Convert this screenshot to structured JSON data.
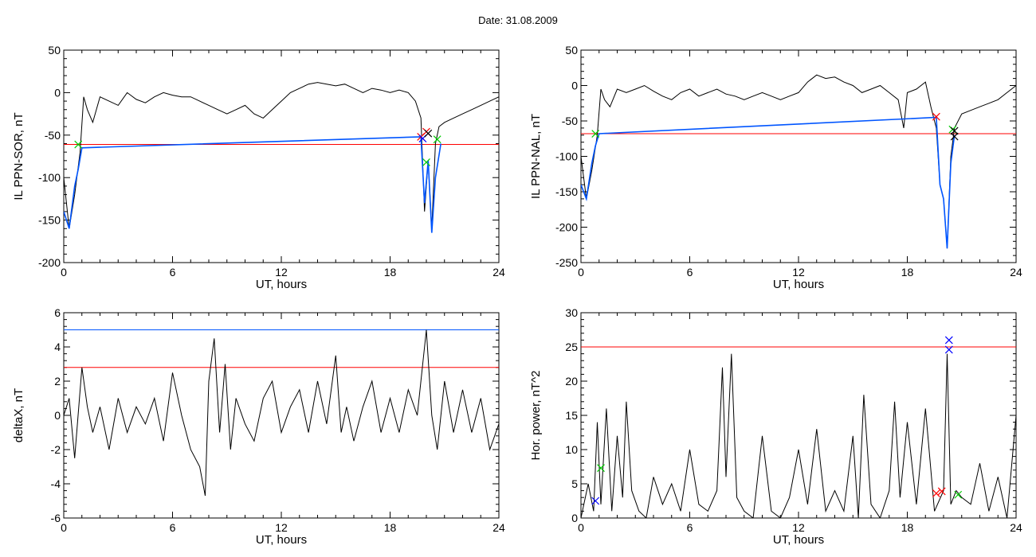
{
  "header": {
    "date_label": "Date:  31.08.2009"
  },
  "chart_data": [
    {
      "type": "line",
      "ylabel": "IL PPN-SOR, nT",
      "xlabel": "UT, hours",
      "xlim": [
        0,
        24
      ],
      "ylim": [
        -200,
        50
      ],
      "xticks": [
        "0",
        "6",
        "12",
        "18",
        "24"
      ],
      "yticks": [
        "50",
        "0",
        "-50",
        "-100",
        "-150",
        "-200"
      ],
      "hlines": [
        {
          "y": -61,
          "color": "#ff0000"
        }
      ],
      "series": [
        {
          "color": "#000000",
          "x": [
            0,
            0.3,
            0.6,
            0.9,
            1.1,
            1.3,
            1.6,
            2.0,
            2.5,
            3.0,
            3.5,
            4.0,
            4.5,
            5.0,
            5.5,
            6.0,
            6.5,
            7.0,
            7.5,
            8.0,
            8.5,
            9.0,
            9.5,
            10.0,
            10.5,
            11.0,
            11.5,
            12.0,
            12.5,
            13.0,
            13.5,
            14.0,
            14.5,
            15.0,
            15.5,
            16.0,
            16.5,
            17.0,
            17.5,
            18.0,
            18.5,
            19.0,
            19.4,
            19.7,
            19.9,
            20.1,
            20.3,
            20.5,
            20.7,
            21.0,
            21.5,
            22.0,
            22.5,
            23.0,
            23.5,
            24.0
          ],
          "y": [
            -100,
            -160,
            -120,
            -70,
            -5,
            -20,
            -35,
            -5,
            -10,
            -15,
            0,
            -8,
            -12,
            -5,
            0,
            -3,
            -5,
            -5,
            -10,
            -15,
            -20,
            -25,
            -20,
            -15,
            -25,
            -30,
            -20,
            -10,
            0,
            5,
            10,
            12,
            10,
            8,
            10,
            5,
            0,
            5,
            3,
            0,
            3,
            0,
            -10,
            -30,
            -140,
            -80,
            -160,
            -60,
            -40,
            -35,
            -30,
            -25,
            -20,
            -15,
            -10,
            -5
          ]
        },
        {
          "color": "#0055ff",
          "x": [
            0,
            0.3,
            0.6,
            0.8,
            1.0,
            19.7,
            19.9,
            20.1,
            20.3,
            20.5,
            20.8
          ],
          "y": [
            -140,
            -160,
            -110,
            -90,
            -65,
            -52,
            -130,
            -80,
            -165,
            -100,
            -60
          ]
        }
      ],
      "markers": [
        {
          "x": 0.8,
          "y": -61,
          "color": "#00cc00"
        },
        {
          "x": 19.7,
          "y": -52,
          "color": "#ff0000"
        },
        {
          "x": 19.8,
          "y": -54,
          "color": "#0000ff"
        },
        {
          "x": 20.0,
          "y": -46,
          "color": "#ff0000"
        },
        {
          "x": 20.1,
          "y": -48,
          "color": "#000000"
        },
        {
          "x": 20.0,
          "y": -82,
          "color": "#00cc00"
        },
        {
          "x": 20.6,
          "y": -55,
          "color": "#00cc00"
        }
      ]
    },
    {
      "type": "line",
      "ylabel": "IL PPN-NAL, nT",
      "xlabel": "UT, hours",
      "xlim": [
        0,
        24
      ],
      "ylim": [
        -250,
        50
      ],
      "xticks": [
        "0",
        "6",
        "12",
        "18",
        "24"
      ],
      "yticks": [
        "50",
        "0",
        "-50",
        "-100",
        "-150",
        "-200",
        "-250"
      ],
      "hlines": [
        {
          "y": -68,
          "color": "#ff0000"
        }
      ],
      "series": [
        {
          "color": "#000000",
          "x": [
            0,
            0.3,
            0.6,
            0.9,
            1.1,
            1.3,
            1.6,
            2.0,
            2.5,
            3.0,
            3.5,
            4.0,
            4.5,
            5.0,
            5.5,
            6.0,
            6.5,
            7.0,
            7.5,
            8.0,
            8.5,
            9.0,
            9.5,
            10.0,
            10.5,
            11.0,
            11.5,
            12.0,
            12.5,
            13.0,
            13.5,
            14.0,
            14.5,
            15.0,
            15.5,
            16.0,
            16.5,
            17.0,
            17.5,
            17.8,
            18.0,
            18.5,
            19.0,
            19.3,
            19.6,
            19.8,
            20.0,
            20.2,
            20.4,
            20.6,
            21.0,
            21.5,
            22.0,
            22.5,
            23.0,
            23.5,
            24.0
          ],
          "y": [
            -100,
            -160,
            -120,
            -70,
            -5,
            -20,
            -30,
            -5,
            -10,
            -5,
            0,
            -8,
            -15,
            -20,
            -10,
            -5,
            -15,
            -10,
            -5,
            -12,
            -15,
            -20,
            -15,
            -10,
            -15,
            -20,
            -15,
            -10,
            5,
            15,
            10,
            12,
            5,
            0,
            -10,
            -5,
            0,
            -10,
            -20,
            -60,
            -10,
            -5,
            5,
            -30,
            -60,
            -140,
            -160,
            -230,
            -100,
            -60,
            -40,
            -35,
            -30,
            -25,
            -20,
            -10,
            0
          ]
        },
        {
          "color": "#0055ff",
          "x": [
            0,
            0.3,
            0.6,
            0.8,
            1.0,
            19.6,
            19.8,
            20.0,
            20.2,
            20.4,
            20.6
          ],
          "y": [
            -140,
            -160,
            -110,
            -85,
            -68,
            -45,
            -140,
            -160,
            -230,
            -110,
            -70
          ]
        }
      ],
      "markers": [
        {
          "x": 0.8,
          "y": -68,
          "color": "#00cc00"
        },
        {
          "x": 19.6,
          "y": -44,
          "color": "#ff0000"
        },
        {
          "x": 20.5,
          "y": -62,
          "color": "#00cc00"
        },
        {
          "x": 20.6,
          "y": -64,
          "color": "#000000"
        },
        {
          "x": 20.6,
          "y": -72,
          "color": "#000000"
        }
      ]
    },
    {
      "type": "line",
      "ylabel": "deltaX, nT",
      "xlabel": "UT, hours",
      "xlim": [
        0,
        24
      ],
      "ylim": [
        -6,
        6
      ],
      "xticks": [
        "0",
        "6",
        "12",
        "18",
        "24"
      ],
      "yticks": [
        "6",
        "4",
        "2",
        "0",
        "-2",
        "-4",
        "-6"
      ],
      "hlines": [
        {
          "y": 5.0,
          "color": "#0055ff"
        },
        {
          "y": 2.8,
          "color": "#ff0000"
        }
      ],
      "series": [
        {
          "color": "#000000",
          "x": [
            0,
            0.3,
            0.6,
            1.0,
            1.3,
            1.6,
            2.0,
            2.5,
            3.0,
            3.5,
            4.0,
            4.5,
            5.0,
            5.5,
            6.0,
            6.5,
            7.0,
            7.5,
            7.8,
            8.0,
            8.3,
            8.6,
            8.9,
            9.2,
            9.5,
            10.0,
            10.5,
            11.0,
            11.5,
            12.0,
            12.5,
            13.0,
            13.5,
            14.0,
            14.5,
            15.0,
            15.3,
            15.6,
            16.0,
            16.5,
            17.0,
            17.5,
            18.0,
            18.5,
            19.0,
            19.5,
            20.0,
            20.3,
            20.6,
            21.0,
            21.5,
            22.0,
            22.5,
            23.0,
            23.5,
            24.0
          ],
          "y": [
            0,
            1.0,
            -2.5,
            2.8,
            0.5,
            -1.0,
            0.5,
            -2.0,
            1.0,
            -1.0,
            0.5,
            -0.5,
            1.0,
            -1.5,
            2.5,
            0.0,
            -2.0,
            -3.0,
            -4.7,
            2.0,
            4.5,
            -1.0,
            3.0,
            -2.0,
            1.0,
            -0.5,
            -1.5,
            1.0,
            2.0,
            -1.0,
            0.5,
            1.5,
            -1.0,
            2.0,
            -0.5,
            3.5,
            -1.0,
            0.5,
            -1.5,
            0.5,
            2.0,
            -1.0,
            1.0,
            -1.0,
            1.5,
            0.0,
            5.0,
            0.0,
            -2.0,
            2.0,
            -1.0,
            1.5,
            -1.0,
            1.0,
            -2.0,
            -0.5
          ]
        }
      ],
      "markers": []
    },
    {
      "type": "line",
      "ylabel": "Hor. power, nT^2",
      "xlabel": "UT, hours",
      "xlim": [
        0,
        24
      ],
      "ylim": [
        0,
        30
      ],
      "xticks": [
        "0",
        "6",
        "12",
        "18",
        "24"
      ],
      "yticks": [
        "30",
        "25",
        "20",
        "15",
        "10",
        "5",
        "0"
      ],
      "hlines": [
        {
          "y": 25.0,
          "color": "#ff0000"
        }
      ],
      "series": [
        {
          "color": "#000000",
          "x": [
            0,
            0.4,
            0.7,
            0.9,
            1.1,
            1.4,
            1.7,
            2.0,
            2.3,
            2.5,
            2.8,
            3.2,
            3.6,
            4.0,
            4.5,
            5.0,
            5.5,
            6.0,
            6.5,
            7.0,
            7.5,
            7.8,
            8.0,
            8.3,
            8.6,
            9.0,
            9.5,
            10.0,
            10.5,
            11.0,
            11.5,
            12.0,
            12.5,
            13.0,
            13.5,
            14.0,
            14.5,
            15.0,
            15.3,
            15.6,
            16.0,
            16.5,
            17.0,
            17.3,
            17.6,
            18.0,
            18.5,
            19.0,
            19.5,
            20.0,
            20.2,
            20.4,
            20.7,
            21.0,
            21.5,
            22.0,
            22.5,
            23.0,
            23.5,
            24.0
          ],
          "y": [
            0,
            5,
            1,
            14,
            2,
            16,
            1,
            12,
            3,
            17,
            4,
            1,
            0,
            6,
            2,
            5,
            1,
            10,
            2,
            1,
            4,
            22,
            6,
            24,
            3,
            1,
            0,
            12,
            1,
            0,
            3,
            10,
            2,
            13,
            1,
            4,
            1,
            12,
            0,
            18,
            2,
            0,
            4,
            17,
            3,
            14,
            2,
            16,
            1,
            4,
            24,
            2,
            4,
            3,
            2,
            8,
            1,
            6,
            0,
            15
          ]
        }
      ],
      "markers": [
        {
          "x": 0.8,
          "y": 2.5,
          "color": "#0000ff"
        },
        {
          "x": 1.1,
          "y": 7.3,
          "color": "#00cc00"
        },
        {
          "x": 19.6,
          "y": 3.6,
          "color": "#ff0000"
        },
        {
          "x": 19.9,
          "y": 3.9,
          "color": "#ff0000"
        },
        {
          "x": 20.3,
          "y": 26.0,
          "color": "#0000ff"
        },
        {
          "x": 20.3,
          "y": 24.6,
          "color": "#0000ff"
        },
        {
          "x": 20.8,
          "y": 3.4,
          "color": "#00cc00"
        }
      ]
    }
  ]
}
